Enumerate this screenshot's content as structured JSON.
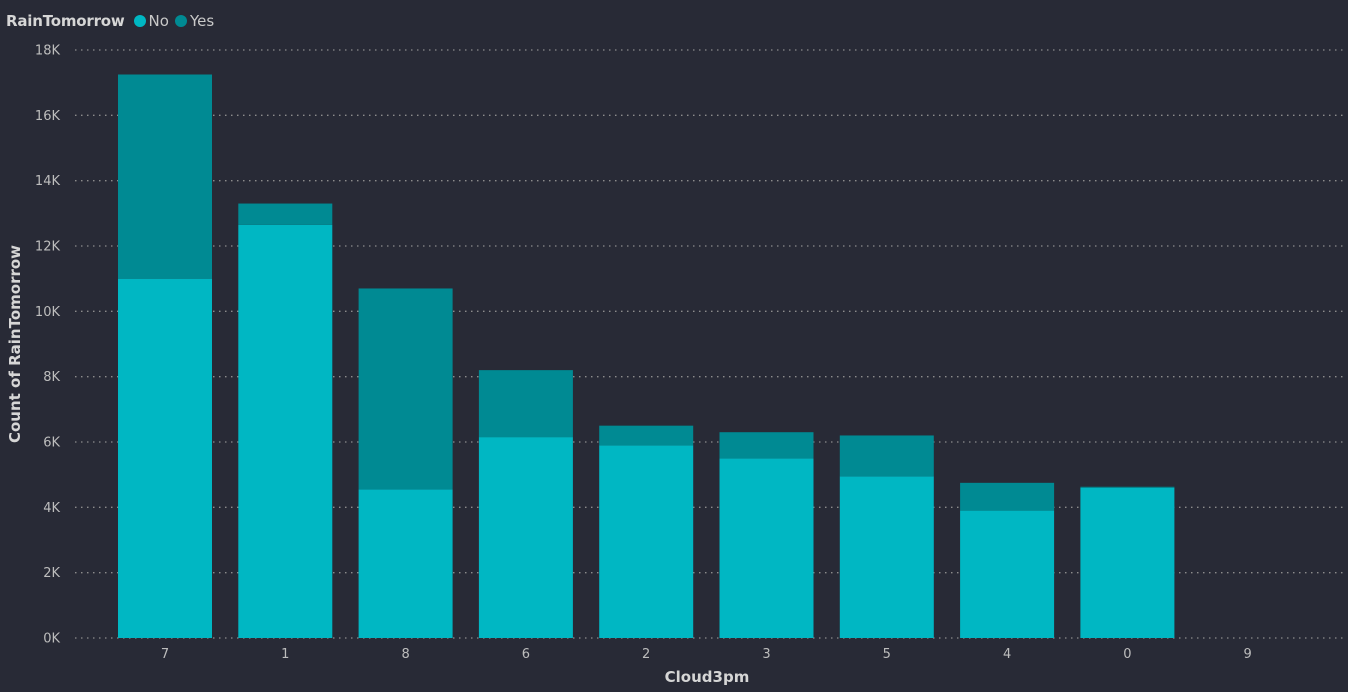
{
  "legend": {
    "title": "RainTomorrow",
    "items": [
      {
        "label": "No",
        "color": "#00b7c3"
      },
      {
        "label": "Yes",
        "color": "#008a93"
      }
    ]
  },
  "colors": {
    "background": "#282a36",
    "gridline": "#8c8c8c",
    "text": "#bdbdbd"
  },
  "chart_data": {
    "type": "bar",
    "stacked": true,
    "xlabel": "Cloud3pm",
    "ylabel": "Count of RainTomorrow",
    "categories": [
      "7",
      "1",
      "8",
      "6",
      "2",
      "3",
      "5",
      "4",
      "0",
      "9"
    ],
    "series": [
      {
        "name": "No",
        "color": "#00b7c3",
        "values": [
          11000,
          12650,
          4550,
          6150,
          5900,
          5500,
          4950,
          3900,
          4600,
          0
        ]
      },
      {
        "name": "Yes",
        "color": "#008a93",
        "values": [
          6250,
          650,
          6150,
          2050,
          600,
          800,
          1250,
          850,
          30,
          0
        ]
      }
    ],
    "ylim": [
      0,
      18000
    ],
    "yticks": [
      "0K",
      "2K",
      "4K",
      "6K",
      "8K",
      "10K",
      "12K",
      "14K",
      "16K",
      "18K"
    ],
    "grid": true,
    "legend_position": "top-left"
  }
}
